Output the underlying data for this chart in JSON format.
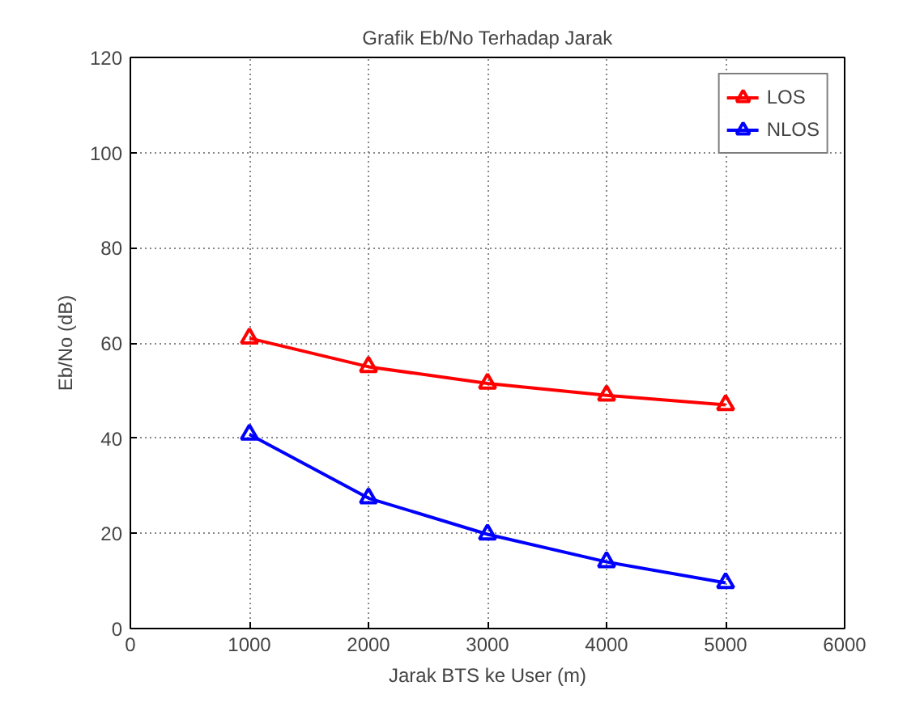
{
  "chart_data": {
    "type": "line",
    "title": "Grafik Eb/No Terhadap Jarak",
    "xlabel": "Jarak BTS ke User (m)",
    "ylabel": "Eb/No (dB)",
    "x": [
      1000,
      2000,
      3000,
      4000,
      5000
    ],
    "series": [
      {
        "name": "LOS",
        "color": "#ff0000",
        "values": [
          61,
          55,
          51.5,
          49,
          47
        ]
      },
      {
        "name": "NLOS",
        "color": "#0000ff",
        "values": [
          40.8,
          27.4,
          19.8,
          14,
          9.6
        ]
      }
    ],
    "xlim": [
      0,
      6000
    ],
    "xticks": [
      0,
      1000,
      2000,
      3000,
      4000,
      5000,
      6000
    ],
    "ylim": [
      0,
      120
    ],
    "yticks": [
      0,
      20,
      40,
      60,
      80,
      100,
      120
    ],
    "grid": true,
    "legend": "top right",
    "marker": "triangle",
    "line_style": "solid"
  }
}
